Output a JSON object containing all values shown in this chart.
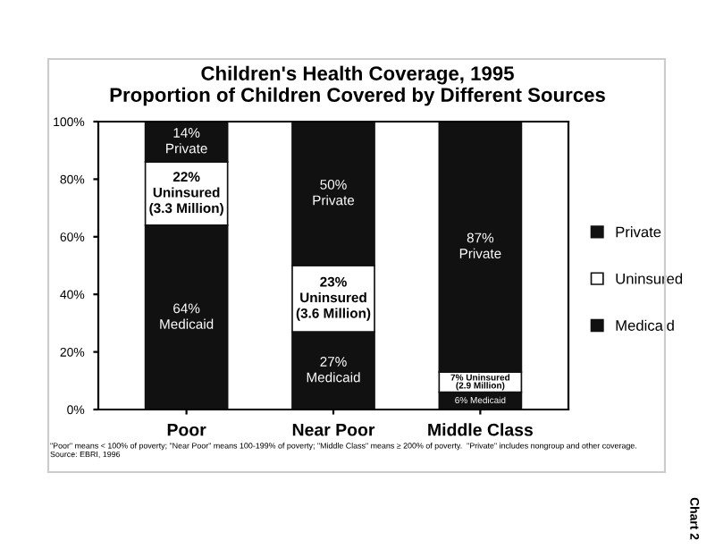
{
  "chart_data": {
    "type": "bar",
    "stacked": true,
    "title": "Children's Health Coverage, 1995\nProportion of Children Covered by Different Sources",
    "categories": [
      "Poor",
      "Near Poor",
      "Middle Class"
    ],
    "series": [
      {
        "name": "Medicaid",
        "color": "#111111",
        "values": [
          64,
          27,
          6
        ],
        "value_labels": [
          "64%\nMedicaid",
          "27%\nMedicaid",
          "6% Medicaid"
        ]
      },
      {
        "name": "Uninsured",
        "color": "#ffffff",
        "values": [
          22,
          23,
          7
        ],
        "value_labels": [
          "22%\nUninsured\n(3.3 Million)",
          "23%\nUninsured\n(3.6 Million)",
          "7% Uninsured\n(2.9 Million)"
        ]
      },
      {
        "name": "Private",
        "color": "#111111",
        "values": [
          14,
          50,
          87
        ],
        "value_labels": [
          "14%\nPrivate",
          "50%\nPrivate",
          "87%\nPrivate"
        ]
      }
    ],
    "ylim": [
      0,
      100
    ],
    "yticks": [
      {
        "value": 0,
        "label": "0%"
      },
      {
        "value": 20,
        "label": "20%"
      },
      {
        "value": 40,
        "label": "40%"
      },
      {
        "value": 60,
        "label": "60%"
      },
      {
        "value": 80,
        "label": "80%"
      },
      {
        "value": 100,
        "label": "100%"
      }
    ],
    "grid": false,
    "legend": "right",
    "annotations": [
      "\"Poor\" means < 100% of poverty; \"Near Poor\" means 100-199% of poverty; \"Middle Class\" means ≥ 200% of poverty.  \"Private\" includes nongroup and other coverage.\nSource: EBRI, 1996",
      "Chart 2"
    ]
  }
}
